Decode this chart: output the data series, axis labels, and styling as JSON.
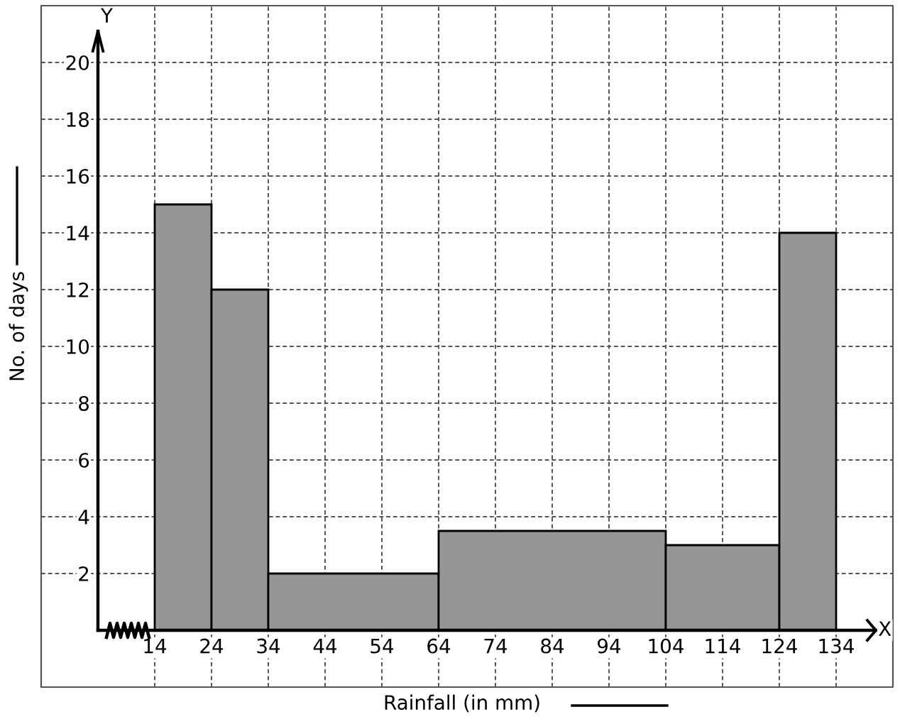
{
  "chart_data": {
    "type": "histogram",
    "xlabel": "Rainfall (in mm)",
    "ylabel": "No. of days",
    "bins": [
      14,
      24,
      34,
      64,
      104,
      124,
      134
    ],
    "values": [
      15,
      12,
      2,
      3.5,
      3,
      14
    ],
    "color": "#969696",
    "xlim": [
      -6,
      144
    ],
    "ylim": [
      -2,
      22
    ],
    "xticks": [
      14,
      24,
      34,
      44,
      54,
      64,
      74,
      84,
      94,
      104,
      114,
      124,
      134
    ],
    "yticks": [
      2,
      4,
      6,
      8,
      10,
      12,
      14,
      16,
      18,
      20
    ],
    "grid": true,
    "annotations": [
      "X",
      "Y"
    ]
  }
}
